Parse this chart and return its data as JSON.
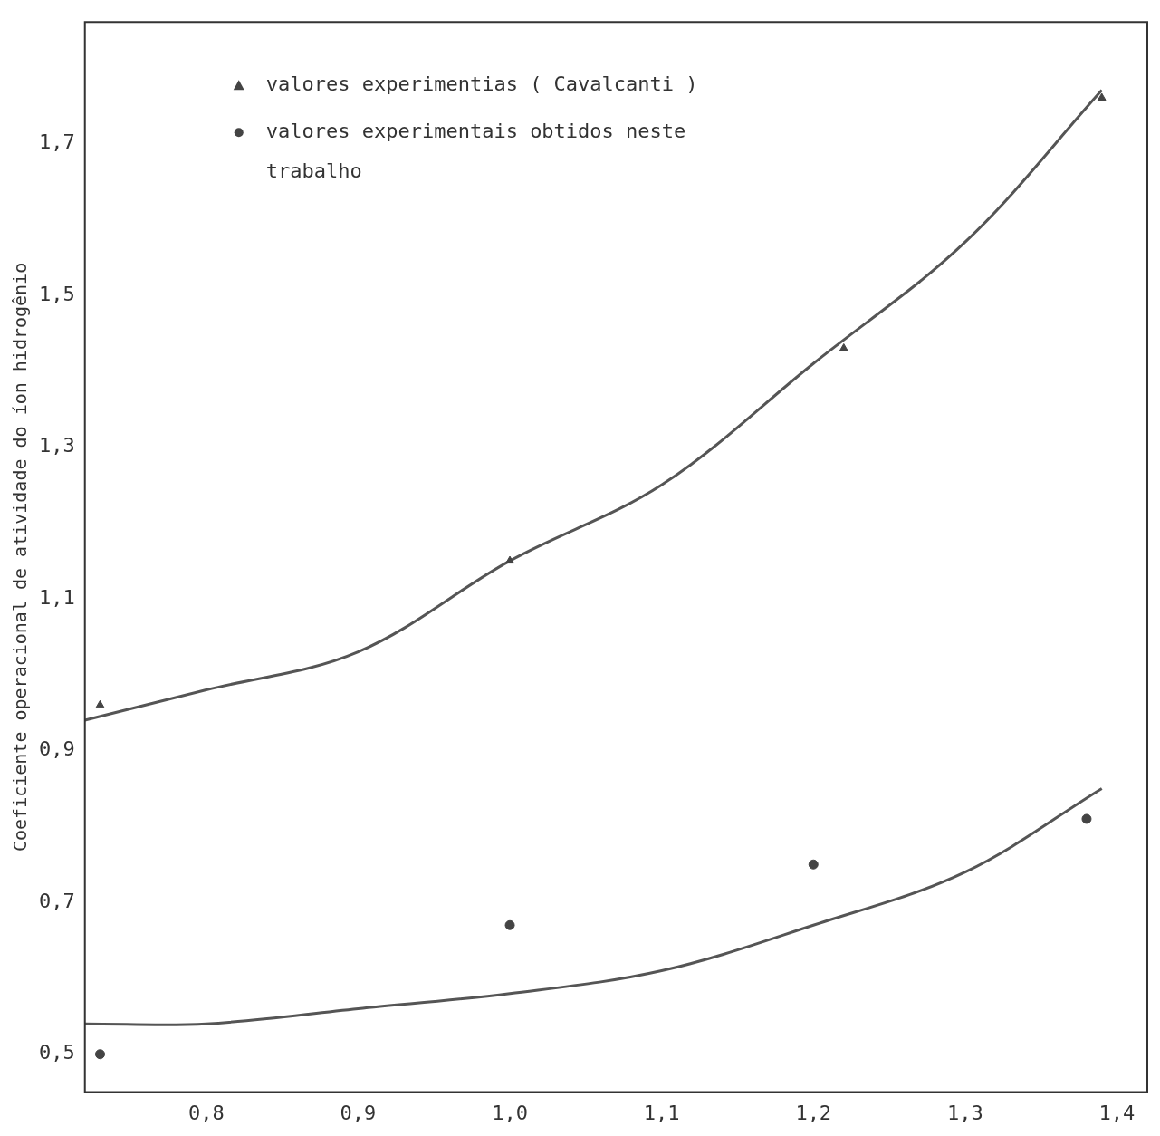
{
  "chart_data": {
    "type": "scatter",
    "ylabel": "Coeficiente operacional de atividade do íon hidrogênio",
    "xlim": [
      0.72,
      1.42
    ],
    "ylim": [
      0.45,
      1.86
    ],
    "xticks": [
      {
        "value": 0.8,
        "label": "0,8"
      },
      {
        "value": 0.9,
        "label": "0,9"
      },
      {
        "value": 1.0,
        "label": "1,0"
      },
      {
        "value": 1.1,
        "label": "1,1"
      },
      {
        "value": 1.2,
        "label": "1,2"
      },
      {
        "value": 1.3,
        "label": "1,3"
      },
      {
        "value": 1.4,
        "label": "1,4"
      }
    ],
    "yticks": [
      {
        "value": 0.5,
        "label": "0,5"
      },
      {
        "value": 0.7,
        "label": "0,7"
      },
      {
        "value": 0.9,
        "label": "0,9"
      },
      {
        "value": 1.1,
        "label": "1,1"
      },
      {
        "value": 1.3,
        "label": "1,3"
      },
      {
        "value": 1.5,
        "label": "1,5"
      },
      {
        "value": 1.7,
        "label": "1,7"
      }
    ],
    "grid": false,
    "legend": "top left",
    "series": [
      {
        "name": "valores experimentias ( Cavalcanti )",
        "type": "scatter",
        "marker": "triangle",
        "color": "#444444",
        "x": [
          0.73,
          1.0,
          1.22,
          1.39
        ],
        "values": [
          0.96,
          1.15,
          1.43,
          1.76
        ]
      },
      {
        "name": "valores experimentais obtidos neste trabalho",
        "type": "scatter",
        "marker": "circle",
        "color": "#444444",
        "x": [
          0.73,
          1.0,
          1.2,
          1.38
        ],
        "values": [
          0.5,
          0.67,
          0.75,
          0.81
        ]
      },
      {
        "type": "line",
        "marker": "none",
        "color": "#555555",
        "x": [
          0.72,
          0.8,
          0.9,
          1.0,
          1.1,
          1.2,
          1.3,
          1.39
        ],
        "values": [
          0.94,
          0.98,
          1.03,
          1.15,
          1.25,
          1.41,
          1.57,
          1.77
        ]
      },
      {
        "type": "line",
        "marker": "none",
        "color": "#555555",
        "x": [
          0.72,
          0.8,
          0.9,
          1.0,
          1.1,
          1.2,
          1.3,
          1.39
        ],
        "values": [
          0.54,
          0.54,
          0.56,
          0.58,
          0.61,
          0.67,
          0.74,
          0.85
        ]
      }
    ]
  }
}
